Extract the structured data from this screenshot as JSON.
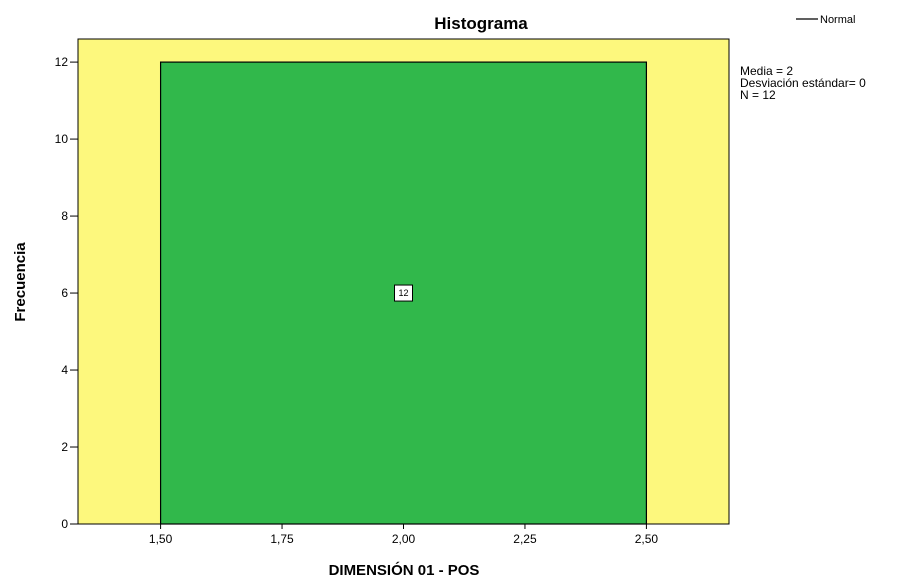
{
  "chart_data": {
    "type": "bar",
    "title": "Histograma",
    "xlabel": "DIMENSIÓN 01  - POS",
    "ylabel": "Frecuencia",
    "bins": [
      {
        "start": 1.5,
        "end": 2.5,
        "value": 12,
        "label": "12"
      }
    ],
    "xlim": [
      1.33,
      2.67
    ],
    "ylim": [
      0,
      12.6
    ],
    "xticks": [
      1.5,
      1.75,
      2.0,
      2.25,
      2.5
    ],
    "xtick_labels": [
      "1,50",
      "1,75",
      "2,00",
      "2,25",
      "2,50"
    ],
    "yticks": [
      0,
      2,
      4,
      6,
      8,
      10,
      12
    ],
    "ytick_labels": [
      "0",
      "2",
      "4",
      "6",
      "8",
      "10",
      "12"
    ],
    "grid": false,
    "legend": {
      "position": "top-right",
      "entries": [
        "Normal"
      ]
    },
    "stats": [
      "Media = 2",
      "Desviación estándar= 0",
      "N = 12"
    ],
    "colors": {
      "plot_background": "#fdf87d",
      "bar_fill": "#31b84b",
      "bar_stroke": "#000000",
      "legend_line": "#000000"
    }
  }
}
